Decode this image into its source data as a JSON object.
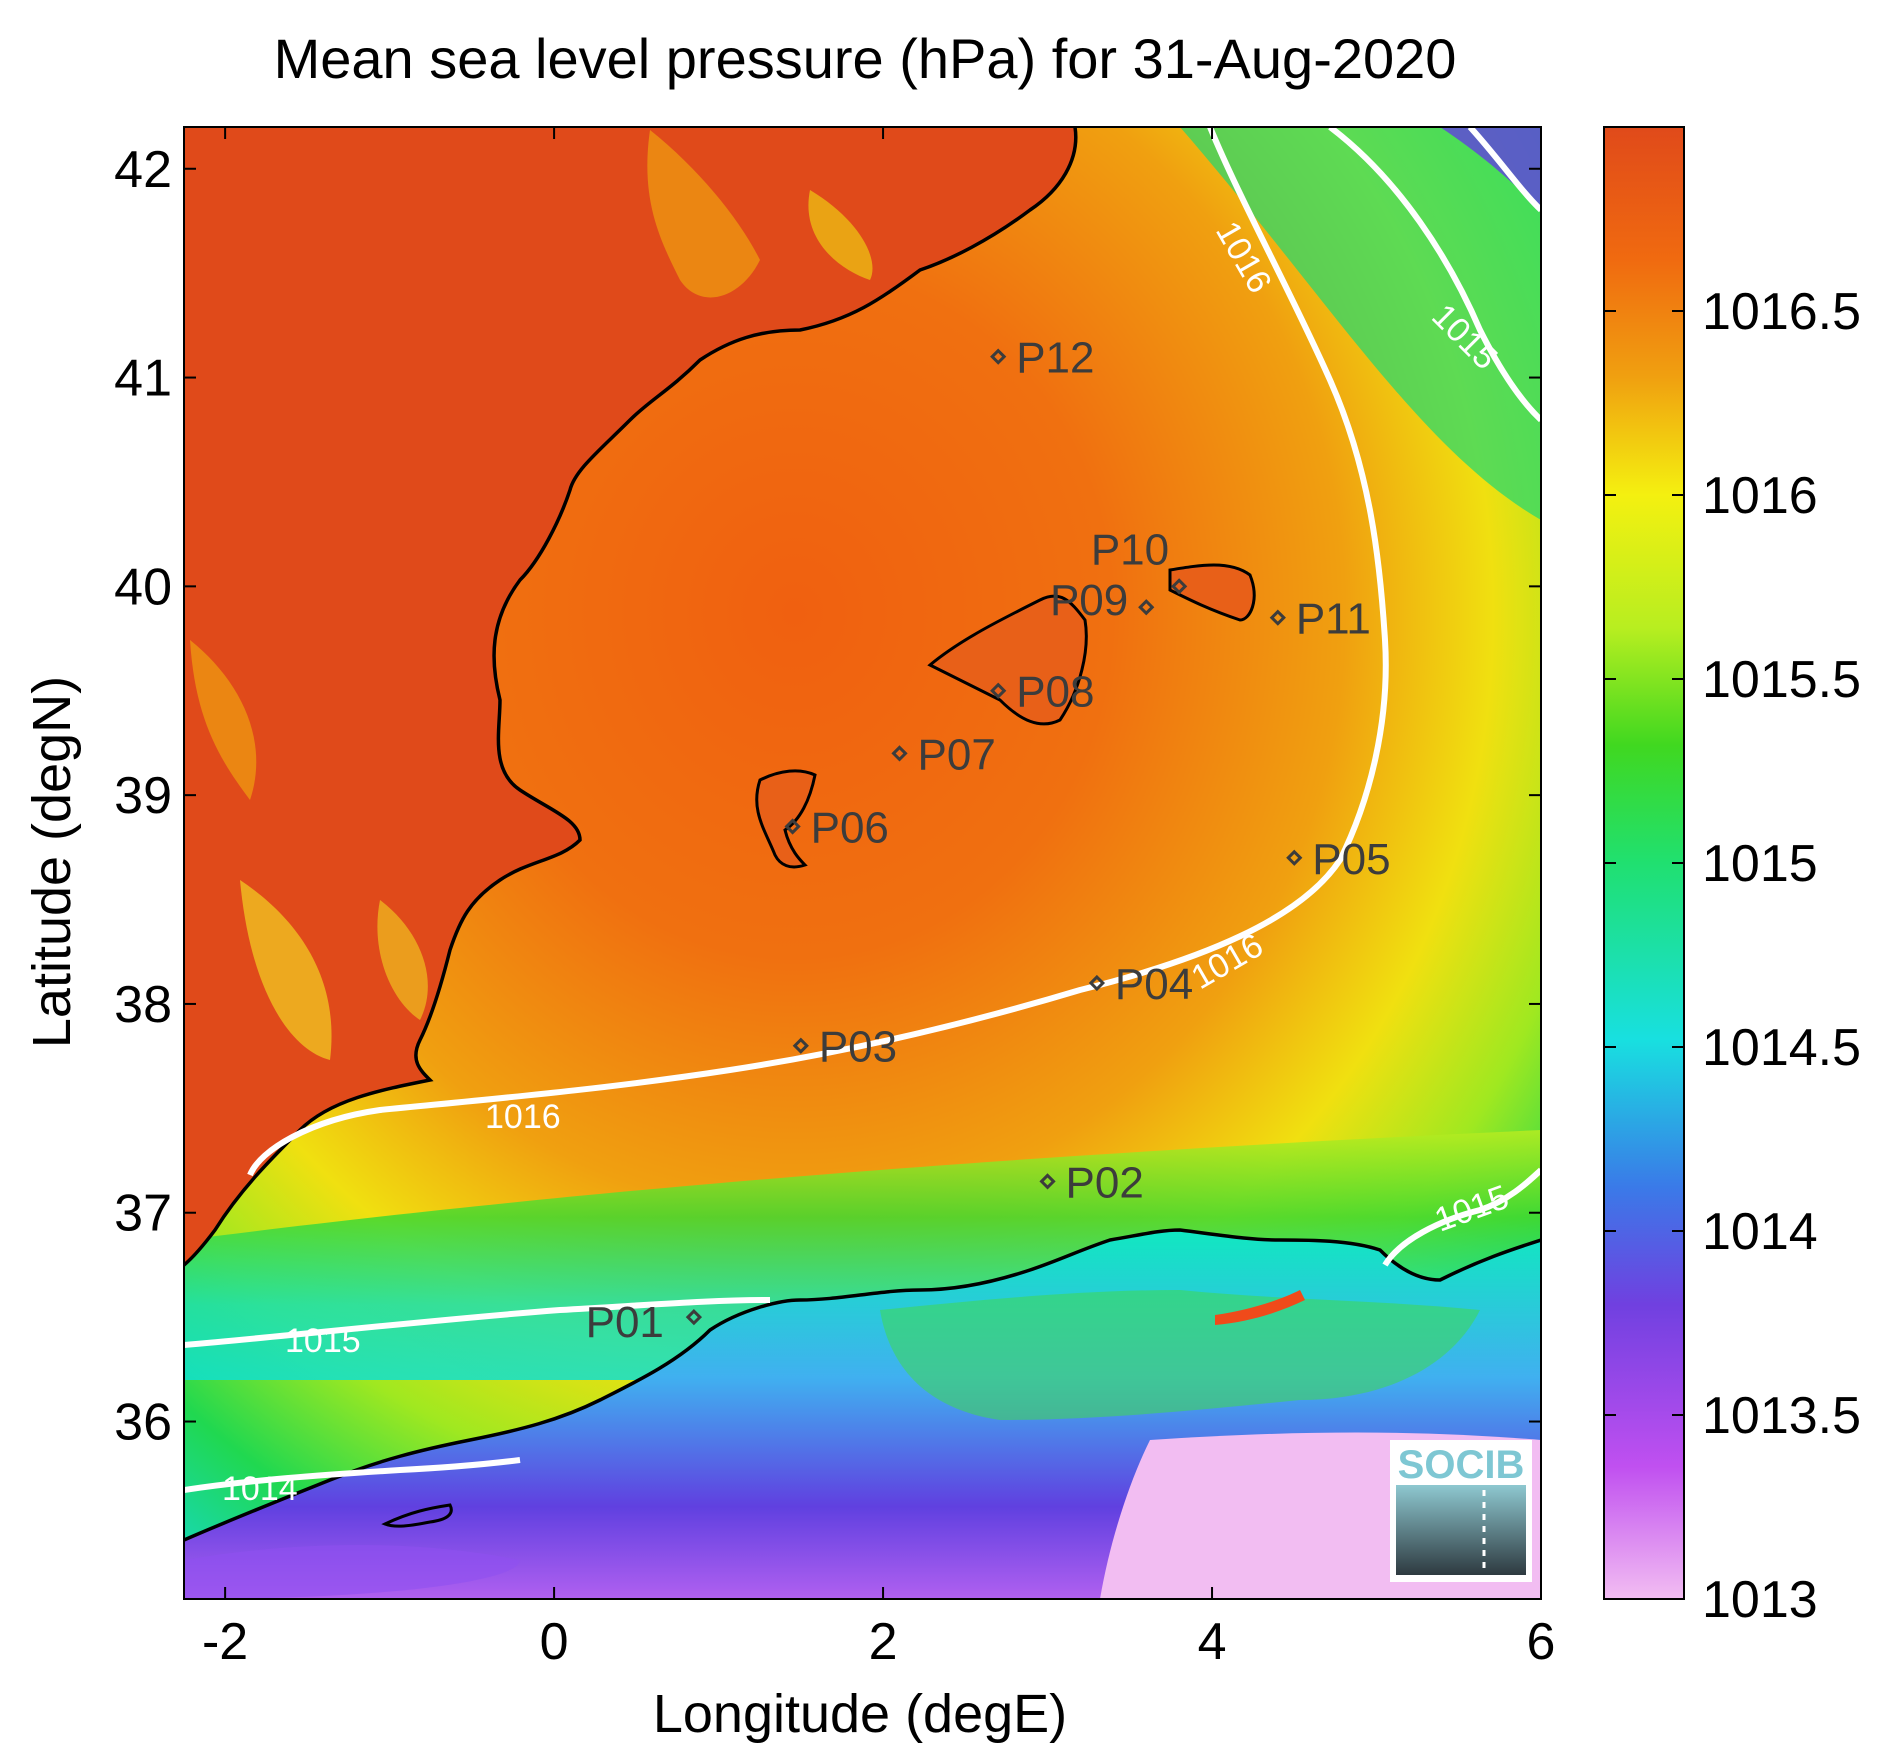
{
  "title": "Mean sea level pressure (hPa) for 31-Aug-2020",
  "axes": {
    "xlabel": "Longitude (degE)",
    "ylabel": "Latitude (degN)",
    "xlim": [
      -2.25,
      6.0
    ],
    "ylim": [
      35.15,
      42.2
    ],
    "xticks": [
      "-2",
      "0",
      "2",
      "4",
      "6"
    ],
    "yticks": [
      "36",
      "37",
      "38",
      "39",
      "40",
      "41",
      "42"
    ]
  },
  "colorbar": {
    "range": [
      1013.0,
      1017.0
    ],
    "ticks": [
      "1013",
      "1013.5",
      "1014",
      "1014.5",
      "1015",
      "1015.5",
      "1016",
      "1016.5"
    ],
    "colors": [
      "#f0b8f0",
      "#b040f0",
      "#6040e0",
      "#2aa8e8",
      "#10e8c8",
      "#20d840",
      "#a0ea20",
      "#f0f010",
      "#f0a010",
      "#f06010",
      "#e04a1a"
    ]
  },
  "stations": [
    {
      "id": "P01",
      "lon": 0.85,
      "lat": 36.5
    },
    {
      "id": "P02",
      "lon": 3.0,
      "lat": 37.15
    },
    {
      "id": "P03",
      "lon": 1.5,
      "lat": 37.8
    },
    {
      "id": "P04",
      "lon": 3.3,
      "lat": 38.1
    },
    {
      "id": "P05",
      "lon": 4.5,
      "lat": 38.7
    },
    {
      "id": "P06",
      "lon": 1.45,
      "lat": 38.85
    },
    {
      "id": "P07",
      "lon": 2.1,
      "lat": 39.2
    },
    {
      "id": "P08",
      "lon": 2.7,
      "lat": 39.5
    },
    {
      "id": "P09",
      "lon": 3.6,
      "lat": 39.9
    },
    {
      "id": "P10",
      "lon": 3.8,
      "lat": 40.0
    },
    {
      "id": "P11",
      "lon": 4.4,
      "lat": 39.85
    },
    {
      "id": "P12",
      "lon": 2.7,
      "lat": 41.1
    }
  ],
  "contour_labels": [
    "1016",
    "1016",
    "1016",
    "1015",
    "1015",
    "1015",
    "1014"
  ],
  "logo": {
    "text": "SOCIB"
  }
}
